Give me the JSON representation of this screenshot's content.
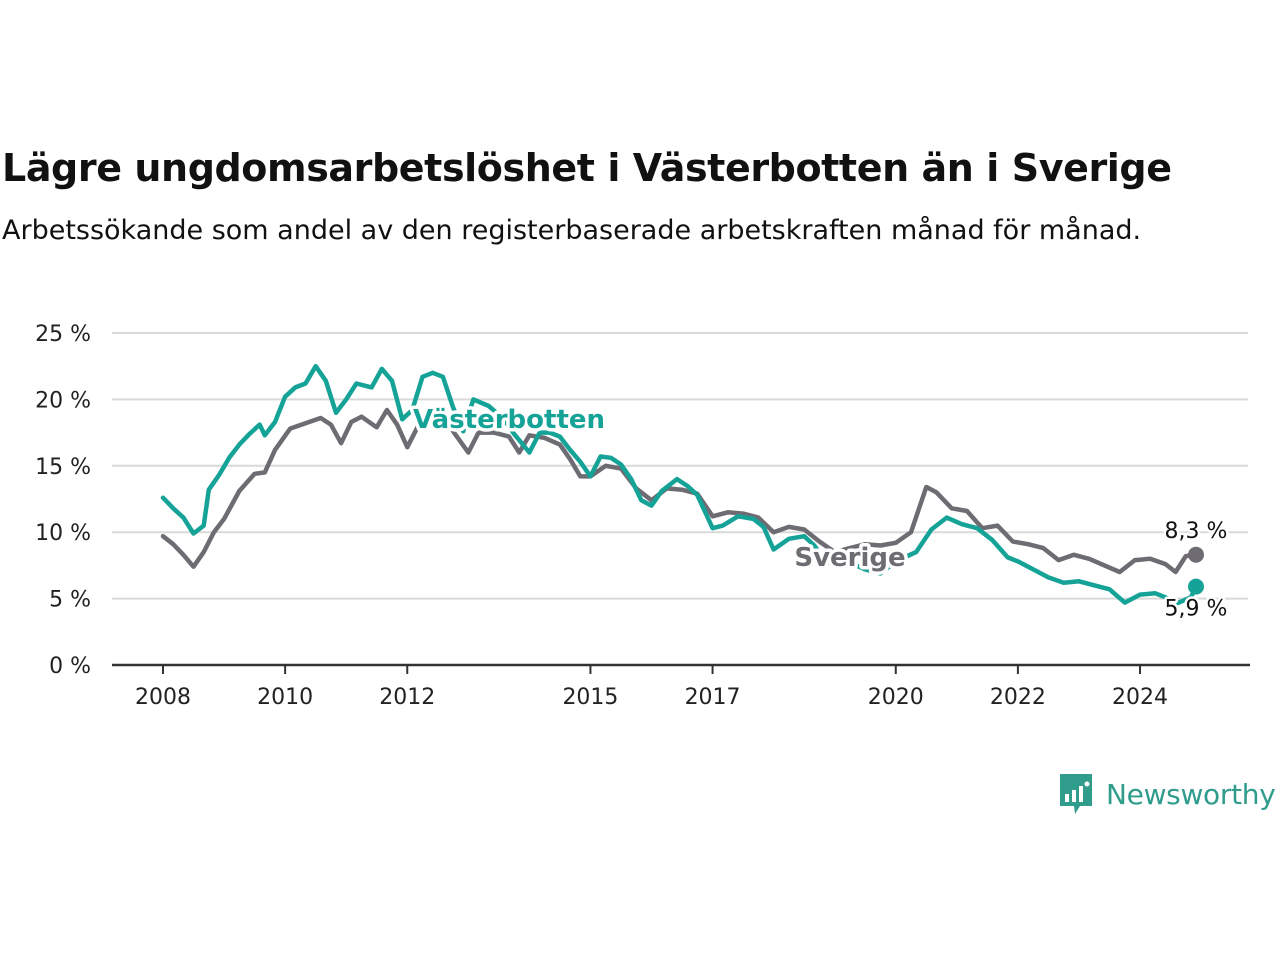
{
  "chart_data": {
    "type": "line",
    "title": "Lägre ungdomsarbetslöshet i Västerbotten än i Sverige",
    "subtitle": "Arbetssökande som andel av den registerbaserade arbetskraften månad för månad.",
    "xlabel": "",
    "ylabel": "",
    "ylim": [
      0,
      25
    ],
    "yticks": [
      0,
      5,
      10,
      15,
      20,
      25
    ],
    "ytick_labels": [
      "0 %",
      "5 %",
      "10 %",
      "15 %",
      "20 %",
      "25 %"
    ],
    "xlim": [
      "2008-01",
      "2024-12"
    ],
    "xticks": [
      "2008",
      "2010",
      "2012",
      "2015",
      "2017",
      "2020",
      "2022",
      "2024"
    ],
    "grid": true,
    "legend": "direct-labels",
    "colors": {
      "Västerbotten": "#15a398",
      "Sverige": "#6e6c72"
    },
    "series": [
      {
        "name": "Västerbotten",
        "end_label": "5,9 %",
        "points": [
          [
            "2008-01",
            12.6
          ],
          [
            "2008-03",
            11.8
          ],
          [
            "2008-05",
            11.1
          ],
          [
            "2008-07",
            9.9
          ],
          [
            "2008-09",
            10.5
          ],
          [
            "2008-10",
            13.2
          ],
          [
            "2008-12",
            14.3
          ],
          [
            "2009-02",
            15.6
          ],
          [
            "2009-04",
            16.6
          ],
          [
            "2009-06",
            17.4
          ],
          [
            "2009-08",
            18.1
          ],
          [
            "2009-09",
            17.3
          ],
          [
            "2009-11",
            18.3
          ],
          [
            "2010-01",
            20.2
          ],
          [
            "2010-03",
            20.9
          ],
          [
            "2010-05",
            21.2
          ],
          [
            "2010-07",
            22.5
          ],
          [
            "2010-09",
            21.4
          ],
          [
            "2010-11",
            19.0
          ],
          [
            "2011-01",
            20.0
          ],
          [
            "2011-03",
            21.2
          ],
          [
            "2011-06",
            20.9
          ],
          [
            "2011-08",
            22.3
          ],
          [
            "2011-10",
            21.4
          ],
          [
            "2011-12",
            18.5
          ],
          [
            "2012-02",
            19.2
          ],
          [
            "2012-04",
            21.7
          ],
          [
            "2012-06",
            22.0
          ],
          [
            "2012-08",
            21.7
          ],
          [
            "2012-10",
            19.4
          ],
          [
            "2012-12",
            17.6
          ],
          [
            "2013-02",
            20.0
          ],
          [
            "2013-05",
            19.5
          ],
          [
            "2013-08",
            18.5
          ],
          [
            "2013-10",
            17.4
          ],
          [
            "2014-01",
            16.0
          ],
          [
            "2014-03",
            17.5
          ],
          [
            "2014-05",
            17.5
          ],
          [
            "2014-07",
            17.2
          ],
          [
            "2014-09",
            16.2
          ],
          [
            "2014-11",
            15.3
          ],
          [
            "2015-01",
            14.2
          ],
          [
            "2015-03",
            15.7
          ],
          [
            "2015-05",
            15.6
          ],
          [
            "2015-07",
            15.1
          ],
          [
            "2015-09",
            14.0
          ],
          [
            "2015-11",
            12.4
          ],
          [
            "2016-01",
            12.0
          ],
          [
            "2016-03",
            13.1
          ],
          [
            "2016-06",
            14.0
          ],
          [
            "2016-08",
            13.5
          ],
          [
            "2016-10",
            12.8
          ],
          [
            "2017-01",
            10.3
          ],
          [
            "2017-03",
            10.5
          ],
          [
            "2017-06",
            11.2
          ],
          [
            "2017-09",
            11.0
          ],
          [
            "2017-11",
            10.4
          ],
          [
            "2018-01",
            8.7
          ],
          [
            "2018-04",
            9.5
          ],
          [
            "2018-07",
            9.7
          ],
          [
            "2018-09",
            9.0
          ],
          [
            "2018-11",
            7.9
          ],
          [
            "2019-01",
            7.5
          ],
          [
            "2019-04",
            7.7
          ],
          [
            "2019-07",
            7.2
          ],
          [
            "2019-10",
            6.9
          ],
          [
            "2020-01",
            7.8
          ],
          [
            "2020-05",
            8.5
          ],
          [
            "2020-08",
            10.2
          ],
          [
            "2020-11",
            11.1
          ],
          [
            "2021-02",
            10.6
          ],
          [
            "2021-05",
            10.3
          ],
          [
            "2021-08",
            9.4
          ],
          [
            "2021-11",
            8.1
          ],
          [
            "2022-01",
            7.8
          ],
          [
            "2022-04",
            7.2
          ],
          [
            "2022-07",
            6.6
          ],
          [
            "2022-10",
            6.2
          ],
          [
            "2023-01",
            6.3
          ],
          [
            "2023-04",
            6.0
          ],
          [
            "2023-07",
            5.7
          ],
          [
            "2023-10",
            4.7
          ],
          [
            "2024-01",
            5.3
          ],
          [
            "2024-04",
            5.4
          ],
          [
            "2024-06",
            5.1
          ],
          [
            "2024-08",
            4.6
          ],
          [
            "2024-11",
            5.1
          ],
          [
            "2024-12",
            5.9
          ]
        ]
      },
      {
        "name": "Sverige",
        "end_label": "8,3 %",
        "points": [
          [
            "2008-01",
            9.7
          ],
          [
            "2008-03",
            9.1
          ],
          [
            "2008-05",
            8.3
          ],
          [
            "2008-07",
            7.4
          ],
          [
            "2008-09",
            8.5
          ],
          [
            "2008-11",
            10.0
          ],
          [
            "2009-01",
            11.0
          ],
          [
            "2009-04",
            13.1
          ],
          [
            "2009-07",
            14.4
          ],
          [
            "2009-09",
            14.5
          ],
          [
            "2009-11",
            16.2
          ],
          [
            "2010-02",
            17.8
          ],
          [
            "2010-05",
            18.2
          ],
          [
            "2010-08",
            18.6
          ],
          [
            "2010-10",
            18.1
          ],
          [
            "2010-12",
            16.7
          ],
          [
            "2011-02",
            18.3
          ],
          [
            "2011-04",
            18.7
          ],
          [
            "2011-07",
            17.9
          ],
          [
            "2011-09",
            19.2
          ],
          [
            "2011-11",
            18.1
          ],
          [
            "2012-01",
            16.4
          ],
          [
            "2012-03",
            17.9
          ],
          [
            "2012-05",
            18.9
          ],
          [
            "2012-08",
            19.2
          ],
          [
            "2012-10",
            17.6
          ],
          [
            "2013-01",
            16.0
          ],
          [
            "2013-03",
            17.5
          ],
          [
            "2013-06",
            17.5
          ],
          [
            "2013-09",
            17.2
          ],
          [
            "2013-11",
            16.0
          ],
          [
            "2014-01",
            17.3
          ],
          [
            "2014-04",
            17.1
          ],
          [
            "2014-07",
            16.6
          ],
          [
            "2014-09",
            15.5
          ],
          [
            "2014-11",
            14.2
          ],
          [
            "2015-01",
            14.2
          ],
          [
            "2015-04",
            15.0
          ],
          [
            "2015-07",
            14.8
          ],
          [
            "2015-10",
            13.3
          ],
          [
            "2016-01",
            12.4
          ],
          [
            "2016-04",
            13.3
          ],
          [
            "2016-07",
            13.2
          ],
          [
            "2016-10",
            12.9
          ],
          [
            "2017-01",
            11.2
          ],
          [
            "2017-04",
            11.5
          ],
          [
            "2017-07",
            11.4
          ],
          [
            "2017-10",
            11.1
          ],
          [
            "2018-01",
            10.0
          ],
          [
            "2018-04",
            10.4
          ],
          [
            "2018-07",
            10.2
          ],
          [
            "2018-10",
            9.3
          ],
          [
            "2019-01",
            8.5
          ],
          [
            "2019-04",
            8.8
          ],
          [
            "2019-07",
            9.1
          ],
          [
            "2019-10",
            9.0
          ],
          [
            "2020-01",
            9.2
          ],
          [
            "2020-04",
            10.0
          ],
          [
            "2020-07",
            13.4
          ],
          [
            "2020-09",
            13.0
          ],
          [
            "2020-12",
            11.8
          ],
          [
            "2021-03",
            11.6
          ],
          [
            "2021-06",
            10.3
          ],
          [
            "2021-09",
            10.5
          ],
          [
            "2021-12",
            9.3
          ],
          [
            "2022-03",
            9.1
          ],
          [
            "2022-06",
            8.8
          ],
          [
            "2022-09",
            7.9
          ],
          [
            "2022-12",
            8.3
          ],
          [
            "2023-03",
            8.0
          ],
          [
            "2023-06",
            7.5
          ],
          [
            "2023-09",
            7.0
          ],
          [
            "2023-12",
            7.9
          ],
          [
            "2024-03",
            8.0
          ],
          [
            "2024-06",
            7.6
          ],
          [
            "2024-08",
            7.0
          ],
          [
            "2024-10",
            8.2
          ],
          [
            "2024-12",
            8.3
          ]
        ]
      }
    ]
  },
  "branding": {
    "logo_text": "Newsworthy",
    "logo_color": "#2f9c8c"
  }
}
